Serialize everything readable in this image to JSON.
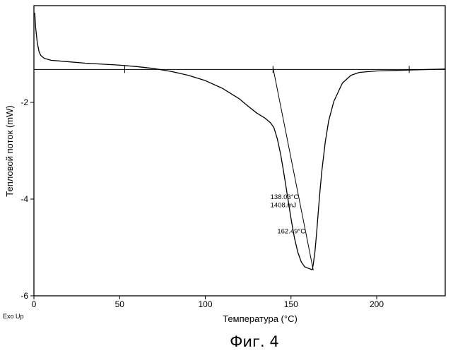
{
  "chart_data": {
    "type": "line",
    "title": "",
    "xlabel": "Температура (°C)",
    "ylabel": "Тепловой поток (mW)",
    "xlim": [
      0,
      240
    ],
    "ylim": [
      -6,
      0
    ],
    "xticks": [
      0,
      50,
      100,
      150,
      200
    ],
    "yticks": [
      -2,
      -4,
      -6
    ],
    "xtick_labels": [
      "0",
      "50",
      "100",
      "150",
      "200"
    ],
    "ytick_labels": [
      "-2",
      "-4",
      "-6"
    ],
    "exo_label": "Exo Up",
    "caption": "Фиг. 4",
    "series": [
      {
        "name": "DSC curve",
        "x": [
          0.5,
          1,
          2,
          3,
          4,
          6,
          10,
          20,
          30,
          40,
          50,
          60,
          70,
          80,
          90,
          100,
          110,
          120,
          125,
          130,
          135,
          138,
          140,
          142,
          144,
          146,
          148,
          150,
          152,
          154,
          156,
          158,
          160,
          161,
          162,
          162.49,
          163,
          164,
          165,
          166,
          167,
          168,
          170,
          172,
          175,
          180,
          185,
          190,
          200,
          210,
          220,
          230,
          240
        ],
        "y": [
          -0.15,
          -0.45,
          -0.78,
          -0.95,
          -1.03,
          -1.09,
          -1.13,
          -1.16,
          -1.19,
          -1.21,
          -1.23,
          -1.26,
          -1.3,
          -1.36,
          -1.44,
          -1.55,
          -1.71,
          -1.93,
          -2.08,
          -2.22,
          -2.33,
          -2.42,
          -2.52,
          -2.75,
          -3.08,
          -3.5,
          -3.95,
          -4.4,
          -4.8,
          -5.1,
          -5.3,
          -5.4,
          -5.43,
          -5.44,
          -5.46,
          -5.45,
          -5.35,
          -5.08,
          -4.68,
          -4.23,
          -3.8,
          -3.42,
          -2.82,
          -2.38,
          -1.98,
          -1.6,
          -1.44,
          -1.38,
          -1.35,
          -1.34,
          -1.33,
          -1.32,
          -1.31
        ]
      },
      {
        "name": "Baseline",
        "x": [
          0,
          240
        ],
        "y": [
          -1.32,
          -1.32
        ]
      },
      {
        "name": "Onset tangent",
        "x": [
          139.5,
          163
        ],
        "y": [
          -1.28,
          -5.47
        ]
      }
    ],
    "baseline_ticks": [
      53,
      139.5,
      219
    ],
    "annotations": [
      {
        "text": "138.03°C",
        "x": 138,
        "y": -4.0
      },
      {
        "text": "1408.mJ",
        "x": 138,
        "y": -4.17
      },
      {
        "text": "162.49°C",
        "x": 142,
        "y": -4.71
      }
    ]
  }
}
